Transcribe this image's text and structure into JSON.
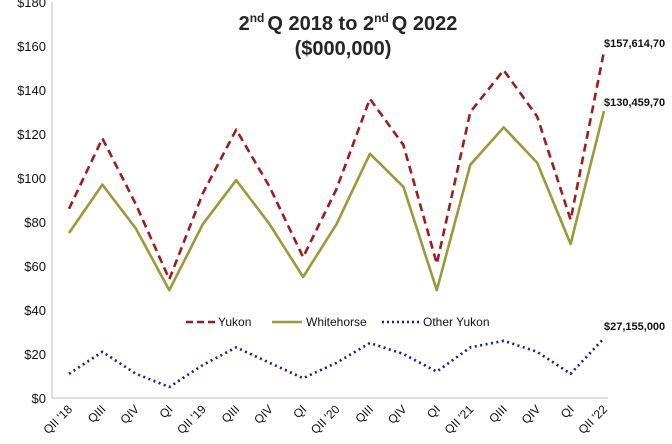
{
  "chart_data": {
    "type": "line",
    "title": {
      "line1_part1": "2",
      "line1_sup1": "nd",
      "line1_part2": "Q 2018 to 2",
      "line1_sup2": "nd",
      "line1_part3": "Q 2022",
      "line2": "($000,000)"
    },
    "xlabel": "",
    "ylabel": "",
    "ylim": [
      0,
      180
    ],
    "yticks": [
      "$0",
      "$20",
      "$40",
      "$60",
      "$80",
      "$100",
      "$120",
      "$140",
      "$160",
      "$180"
    ],
    "categories": [
      "QII '18",
      "QIII",
      "QIV",
      "QI",
      "QII '19",
      "QIII",
      "QIV",
      "QI",
      "QII '20",
      "QIII",
      "QIV",
      "QI",
      "QII '21",
      "QIII",
      "QIV",
      "QI",
      "QII '22"
    ],
    "series": [
      {
        "name": "Yukon",
        "color": "#a01c1c",
        "style": "dashed",
        "values": [
          86,
          118,
          88,
          54,
          93,
          122,
          96,
          64,
          95,
          136,
          115,
          61,
          130,
          149,
          128,
          81,
          157.6
        ]
      },
      {
        "name": "Whitehorse",
        "color": "#9a9a3a",
        "style": "solid",
        "values": [
          75,
          97,
          77,
          49,
          79,
          99,
          79,
          55,
          79,
          111,
          96,
          49,
          106,
          123,
          107,
          70,
          130.5
        ]
      },
      {
        "name": "Other Yukon",
        "color": "#1a1a9e",
        "style": "dotted",
        "values": [
          11,
          21,
          11,
          5,
          15,
          23,
          16,
          9,
          16,
          25,
          20,
          12,
          23,
          26,
          21,
          11,
          27.2
        ]
      }
    ],
    "data_labels": [
      "$157,614,70",
      "$130,459,70",
      "$27,155,000"
    ],
    "legend_position": "center"
  }
}
